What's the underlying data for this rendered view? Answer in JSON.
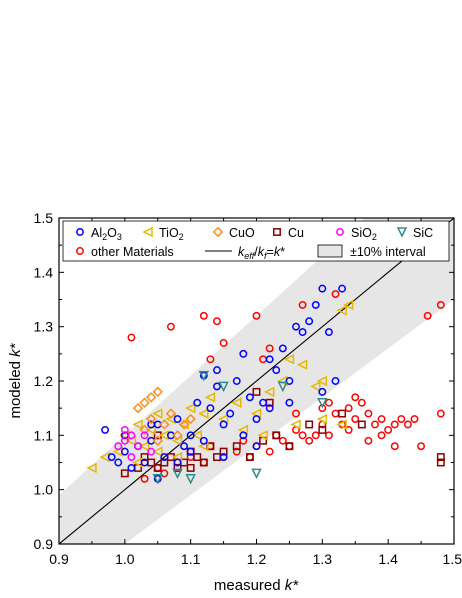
{
  "chart_data": {
    "type": "scatter",
    "xlabel": "measured k*",
    "ylabel": "modeled k*",
    "xlim": [
      0.9,
      1.5
    ],
    "ylim": [
      0.9,
      1.5
    ],
    "x_ticks": [
      "0.9",
      "1.0",
      "1.1",
      "1.2",
      "1.3",
      "1.4",
      "1.5"
    ],
    "y_ticks": [
      "0.9",
      "1.0",
      "1.1",
      "1.2",
      "1.3",
      "1.4",
      "1.5"
    ],
    "grid": false,
    "legend_position": "top",
    "reference_line": {
      "label": "k_eff/k_f=k*",
      "slope": 1,
      "intercept": 0
    },
    "interval_band": {
      "label": "±10% interval",
      "relative_width": 0.1
    },
    "series": [
      {
        "name": "Al2O3",
        "marker": "circle",
        "color": "#0000ff",
        "points": [
          [
            0.97,
            1.11
          ],
          [
            0.98,
            1.06
          ],
          [
            0.99,
            1.05
          ],
          [
            1.0,
            1.07
          ],
          [
            1.01,
            1.04
          ],
          [
            1.02,
            1.08
          ],
          [
            1.03,
            1.05
          ],
          [
            1.04,
            1.09
          ],
          [
            1.05,
            1.12
          ],
          [
            1.06,
            1.06
          ],
          [
            1.07,
            1.1
          ],
          [
            1.08,
            1.13
          ],
          [
            1.09,
            1.08
          ],
          [
            1.1,
            1.1
          ],
          [
            1.11,
            1.16
          ],
          [
            1.12,
            1.21
          ],
          [
            1.13,
            1.15
          ],
          [
            1.14,
            1.19
          ],
          [
            1.15,
            1.12
          ],
          [
            1.16,
            1.14
          ],
          [
            1.17,
            1.2
          ],
          [
            1.18,
            1.1
          ],
          [
            1.19,
            1.17
          ],
          [
            1.2,
            1.13
          ],
          [
            1.21,
            1.16
          ],
          [
            1.22,
            1.24
          ],
          [
            1.23,
            1.22
          ],
          [
            1.24,
            1.26
          ],
          [
            1.25,
            1.2
          ],
          [
            1.26,
            1.3
          ],
          [
            1.27,
            1.29
          ],
          [
            1.28,
            1.31
          ],
          [
            1.29,
            1.34
          ],
          [
            1.3,
            1.37
          ],
          [
            1.31,
            1.29
          ],
          [
            1.32,
            1.2
          ],
          [
            1.33,
            1.37
          ],
          [
            1.05,
            1.02
          ],
          [
            1.1,
            1.07
          ],
          [
            1.12,
            1.09
          ],
          [
            1.15,
            1.06
          ],
          [
            1.2,
            1.08
          ],
          [
            1.25,
            1.16
          ],
          [
            1.3,
            1.18
          ],
          [
            1.0,
            1.1
          ],
          [
            1.04,
            1.12
          ],
          [
            1.08,
            1.05
          ],
          [
            1.14,
            1.22
          ],
          [
            1.18,
            1.25
          ],
          [
            1.22,
            1.15
          ]
        ]
      },
      {
        "name": "TiO2",
        "marker": "triangle-left",
        "color": "#e6b800",
        "points": [
          [
            0.95,
            1.04
          ],
          [
            0.97,
            1.06
          ],
          [
            0.99,
            1.07
          ],
          [
            1.0,
            1.1
          ],
          [
            1.01,
            1.09
          ],
          [
            1.02,
            1.12
          ],
          [
            1.03,
            1.08
          ],
          [
            1.04,
            1.11
          ],
          [
            1.05,
            1.14
          ],
          [
            1.06,
            1.1
          ],
          [
            1.07,
            1.13
          ],
          [
            1.08,
            1.09
          ],
          [
            1.09,
            1.12
          ],
          [
            1.1,
            1.15
          ],
          [
            1.11,
            1.1
          ],
          [
            1.12,
            1.14
          ],
          [
            1.13,
            1.17
          ],
          [
            1.15,
            1.13
          ],
          [
            1.17,
            1.16
          ],
          [
            1.2,
            1.14
          ],
          [
            1.22,
            1.18
          ],
          [
            1.24,
            1.2
          ],
          [
            1.25,
            1.24
          ],
          [
            1.27,
            1.23
          ],
          [
            1.29,
            1.19
          ],
          [
            1.3,
            1.2
          ],
          [
            1.33,
            1.33
          ],
          [
            1.34,
            1.34
          ],
          [
            1.02,
            1.05
          ],
          [
            1.05,
            1.07
          ],
          [
            1.08,
            1.06
          ],
          [
            1.12,
            1.08
          ],
          [
            1.18,
            1.11
          ],
          [
            1.21,
            1.1
          ],
          [
            1.26,
            1.12
          ],
          [
            1.3,
            1.13
          ],
          [
            1.33,
            1.12
          ]
        ]
      },
      {
        "name": "CuO",
        "marker": "diamond",
        "color": "#ff8c1a",
        "points": [
          [
            1.02,
            1.15
          ],
          [
            1.03,
            1.16
          ],
          [
            1.04,
            1.17
          ],
          [
            1.05,
            1.18
          ],
          [
            1.04,
            1.13
          ],
          [
            1.06,
            1.12
          ],
          [
            1.07,
            1.14
          ],
          [
            1.08,
            1.1
          ],
          [
            1.09,
            1.12
          ],
          [
            1.05,
            1.09
          ],
          [
            1.03,
            1.11
          ],
          [
            1.1,
            1.13
          ]
        ]
      },
      {
        "name": "Cu",
        "marker": "square",
        "color": "#8b0000",
        "points": [
          [
            1.0,
            1.03
          ],
          [
            1.02,
            1.04
          ],
          [
            1.03,
            1.06
          ],
          [
            1.04,
            1.05
          ],
          [
            1.05,
            1.04
          ],
          [
            1.06,
            1.05
          ],
          [
            1.07,
            1.06
          ],
          [
            1.08,
            1.04
          ],
          [
            1.09,
            1.05
          ],
          [
            1.1,
            1.07
          ],
          [
            1.11,
            1.06
          ],
          [
            1.12,
            1.05
          ],
          [
            1.13,
            1.08
          ],
          [
            1.14,
            1.06
          ],
          [
            1.15,
            1.07
          ],
          [
            1.17,
            1.08
          ],
          [
            1.19,
            1.06
          ],
          [
            1.21,
            1.09
          ],
          [
            1.23,
            1.1
          ],
          [
            1.25,
            1.08
          ],
          [
            1.28,
            1.12
          ],
          [
            1.3,
            1.11
          ],
          [
            1.33,
            1.14
          ],
          [
            1.36,
            1.12
          ],
          [
            1.48,
            1.06
          ],
          [
            1.48,
            1.05
          ],
          [
            1.05,
            1.1
          ],
          [
            1.1,
            1.04
          ],
          [
            1.2,
            1.18
          ],
          [
            1.22,
            1.16
          ]
        ]
      },
      {
        "name": "SiO2",
        "marker": "circle",
        "color": "#ff00ff",
        "points": [
          [
            1.0,
            1.09
          ],
          [
            1.01,
            1.1
          ],
          [
            1.02,
            1.08
          ],
          [
            1.03,
            1.1
          ],
          [
            1.01,
            1.06
          ],
          [
            1.0,
            1.11
          ],
          [
            0.99,
            1.08
          ],
          [
            1.04,
            1.07
          ]
        ]
      },
      {
        "name": "SiC",
        "marker": "triangle-down",
        "color": "#2e8b8b",
        "points": [
          [
            1.05,
            1.02
          ],
          [
            1.08,
            1.03
          ],
          [
            1.12,
            1.21
          ],
          [
            1.15,
            1.19
          ],
          [
            1.2,
            1.03
          ],
          [
            1.24,
            1.19
          ],
          [
            1.3,
            1.16
          ],
          [
            1.1,
            1.02
          ]
        ]
      },
      {
        "name": "other Materials",
        "marker": "circle",
        "color": "#ff0000",
        "points": [
          [
            1.01,
            1.28
          ],
          [
            1.07,
            1.3
          ],
          [
            1.12,
            1.32
          ],
          [
            1.14,
            1.31
          ],
          [
            1.13,
            1.24
          ],
          [
            1.15,
            1.27
          ],
          [
            1.2,
            1.32
          ],
          [
            1.21,
            1.24
          ],
          [
            1.22,
            1.26
          ],
          [
            1.27,
            1.34
          ],
          [
            1.32,
            1.36
          ],
          [
            1.46,
            1.32
          ],
          [
            1.48,
            1.34
          ],
          [
            1.48,
            1.14
          ],
          [
            1.45,
            1.08
          ],
          [
            1.05,
            1.04
          ],
          [
            1.08,
            1.05
          ],
          [
            1.1,
            1.06
          ],
          [
            1.12,
            1.05
          ],
          [
            1.15,
            1.06
          ],
          [
            1.17,
            1.07
          ],
          [
            1.19,
            1.06
          ],
          [
            1.2,
            1.08
          ],
          [
            1.22,
            1.07
          ],
          [
            1.24,
            1.09
          ],
          [
            1.25,
            1.08
          ],
          [
            1.27,
            1.1
          ],
          [
            1.28,
            1.09
          ],
          [
            1.3,
            1.12
          ],
          [
            1.31,
            1.1
          ],
          [
            1.32,
            1.14
          ],
          [
            1.33,
            1.12
          ],
          [
            1.34,
            1.15
          ],
          [
            1.35,
            1.13
          ],
          [
            1.36,
            1.16
          ],
          [
            1.37,
            1.14
          ],
          [
            1.38,
            1.12
          ],
          [
            1.39,
            1.13
          ],
          [
            1.4,
            1.11
          ],
          [
            1.41,
            1.12
          ],
          [
            1.42,
            1.13
          ],
          [
            1.43,
            1.12
          ],
          [
            1.44,
            1.13
          ],
          [
            1.34,
            1.11
          ],
          [
            1.29,
            1.1
          ],
          [
            1.26,
            1.11
          ],
          [
            1.23,
            1.1
          ],
          [
            1.18,
            1.09
          ],
          [
            1.13,
            1.08
          ],
          [
            1.06,
            1.03
          ],
          [
            1.03,
            1.02
          ],
          [
            1.37,
            1.09
          ],
          [
            1.39,
            1.1
          ],
          [
            1.41,
            1.08
          ],
          [
            1.31,
            1.16
          ],
          [
            1.35,
            1.17
          ],
          [
            1.3,
            1.15
          ],
          [
            1.26,
            1.14
          ]
        ]
      }
    ]
  },
  "legend": {
    "entries": [
      {
        "main": "Al",
        "sub": "2",
        "rest": "O",
        "sub2": "3",
        "color": "#0000ff",
        "marker": "circle"
      },
      {
        "main": "TiO",
        "sub": "2",
        "color": "#e6b800",
        "marker": "triangle-left"
      },
      {
        "main": "CuO",
        "color": "#ff8c1a",
        "marker": "diamond"
      },
      {
        "main": "Cu",
        "color": "#8b0000",
        "marker": "square"
      },
      {
        "main": "SiO",
        "sub": "2",
        "color": "#ff00ff",
        "marker": "circle"
      },
      {
        "main": "SiC",
        "color": "#2e8b8b",
        "marker": "triangle-down"
      },
      {
        "main": "other Materials",
        "color": "#ff0000",
        "marker": "circle"
      }
    ],
    "line_label": {
      "k1": "k",
      "sub1": "eff",
      "slash": "/",
      "k2": "k",
      "sub2": "f",
      "eq": "=",
      "k3": "k",
      "star": "*"
    },
    "band_label": "±10% interval"
  },
  "axes": {
    "xlabel_text": "measured ",
    "xlabel_var": "k*",
    "ylabel_text": "modeled ",
    "ylabel_var": "k*"
  }
}
